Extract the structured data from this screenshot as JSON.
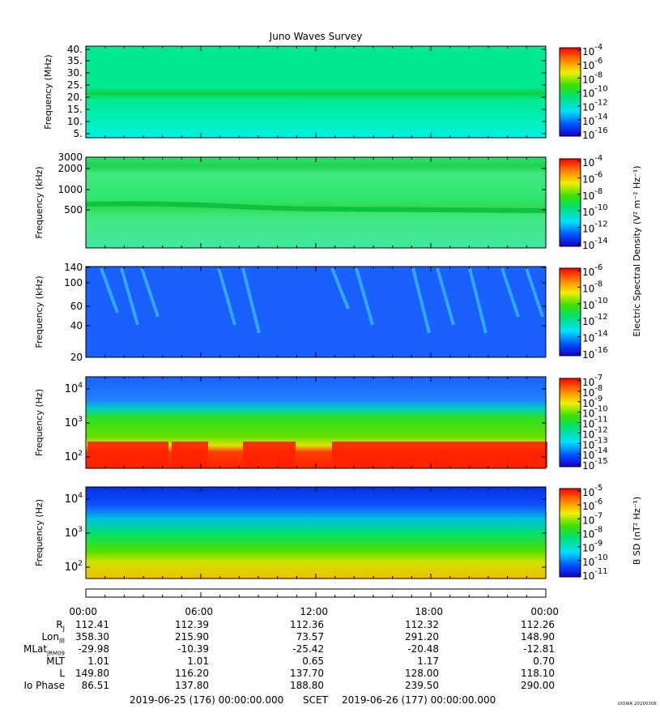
{
  "title": "Juno Waves Survey",
  "colors": {
    "bg": "#ffffff",
    "axis": "#000000"
  },
  "panels": [
    {
      "name": "hf-mhz",
      "ylabel": "Frequency (MHz)",
      "yticks": [
        "40.",
        "35.",
        "30.",
        "25.",
        "20.",
        "15.",
        "10.",
        "5."
      ],
      "cbar_ticks": [
        "-4",
        "-6",
        "-8",
        "-10",
        "-12",
        "-14",
        "-16"
      ]
    },
    {
      "name": "hf-khz",
      "ylabel": "Frequency (kHz)",
      "yticks": [
        "3000",
        "2000",
        "1000",
        "500"
      ],
      "cbar_ticks": [
        "-4",
        "-6",
        "-8",
        "-10",
        "-12",
        "-14"
      ]
    },
    {
      "name": "lf-khz",
      "ylabel": "Frequency (kHz)",
      "yticks": [
        "140",
        "100",
        "60",
        "40",
        "20"
      ],
      "cbar_ticks": [
        "-6",
        "-8",
        "-10",
        "-12",
        "-14",
        "-16"
      ]
    },
    {
      "name": "lf-hz-e",
      "ylabel": "Frequency (Hz)",
      "yticks": [
        "4",
        "3",
        "2"
      ],
      "cbar_ticks": [
        "-7",
        "-8",
        "-9",
        "-10",
        "-11",
        "-12",
        "-13",
        "-14",
        "-15"
      ]
    },
    {
      "name": "lf-hz-b",
      "ylabel": "Frequency (Hz)",
      "yticks": [
        "4",
        "3",
        "2"
      ],
      "cbar_ticks": [
        "-5",
        "-6",
        "-7",
        "-8",
        "-9",
        "-10",
        "-11"
      ]
    }
  ],
  "cbar_labels": {
    "electric": "Electric Spectral Density (V² m⁻² Hz⁻¹)",
    "magnetic": "B SD (nT² Hz⁻¹)"
  },
  "ephemeris": {
    "times": [
      "00:00",
      "06:00",
      "12:00",
      "18:00",
      "00:00"
    ],
    "rows": [
      {
        "label": "Rj",
        "values": [
          "112.41",
          "112.39",
          "112.36",
          "112.32",
          "112.26"
        ]
      },
      {
        "label": "LonIII",
        "values": [
          "358.30",
          "215.90",
          "73.57",
          "291.20",
          "148.90"
        ]
      },
      {
        "label": "MLatJRM09",
        "values": [
          "-29.98",
          "-10.39",
          "-25.42",
          "-20.48",
          "-12.81"
        ]
      },
      {
        "label": "MLT",
        "values": [
          "1.01",
          "1.01",
          "0.65",
          "1.17",
          "0.70"
        ]
      },
      {
        "label": "L",
        "values": [
          "149.80",
          "116.20",
          "137.70",
          "128.00",
          "118.10"
        ]
      },
      {
        "label": "Io Phase",
        "values": [
          "86.51",
          "137.80",
          "188.80",
          "239.50",
          "290.00"
        ]
      }
    ]
  },
  "footer": {
    "start": "2019-06-25 (176) 00:00:00.000",
    "scet": "SCET",
    "end": "2019-06-26 (177) 00:00:00.000"
  },
  "credit": "UIOWA 20200306",
  "chart_data": [
    {
      "type": "heatmap",
      "title": "Juno Waves Survey",
      "ylabel": "Frequency (MHz)",
      "ylim": [
        3,
        41
      ],
      "x": [
        "00:00",
        "06:00",
        "12:00",
        "18:00",
        "00:00"
      ],
      "colorbar_range_log10": [
        -16.5,
        -4
      ],
      "units": "V^2 m^-2 Hz^-1",
      "features": [
        {
          "freq": 21,
          "log10_level": -12
        }
      ]
    },
    {
      "type": "heatmap",
      "ylabel": "Frequency (kHz)",
      "ylim": [
        150,
        3000
      ],
      "scale": "log",
      "colorbar_range_log10": [
        -15,
        -4
      ],
      "units": "V^2 m^-2 Hz^-1",
      "features": [
        {
          "freq": 2200,
          "log10_level": -12
        },
        {
          "freq_start": 650,
          "freq_end": 500,
          "log10_level": -11.5
        }
      ]
    },
    {
      "type": "heatmap",
      "ylabel": "Frequency (kHz)",
      "ylim": [
        20,
        140
      ],
      "scale": "log",
      "colorbar_range_log10": [
        -16.5,
        -6
      ],
      "units": "V^2 m^-2 Hz^-1",
      "background_log10": -14.5
    },
    {
      "type": "heatmap",
      "ylabel": "Frequency (Hz)",
      "ylim": [
        50,
        20000
      ],
      "scale": "log",
      "colorbar_range_log10": [
        -15,
        -7
      ],
      "units": "V^2 m^-2 Hz^-1",
      "features": [
        {
          "freq_range": [
            80,
            250
          ],
          "log10_level": -8
        },
        {
          "freq_range": [
            300,
            2000
          ],
          "log10_level": -11
        }
      ]
    },
    {
      "type": "heatmap",
      "ylabel": "Frequency (Hz)",
      "ylim": [
        50,
        20000
      ],
      "scale": "log",
      "colorbar_range_log10": [
        -11,
        -4.5
      ],
      "units": "nT^2 Hz^-1",
      "features": [
        {
          "freq_range": [
            50,
            200
          ],
          "log10_level": -7
        }
      ]
    }
  ]
}
